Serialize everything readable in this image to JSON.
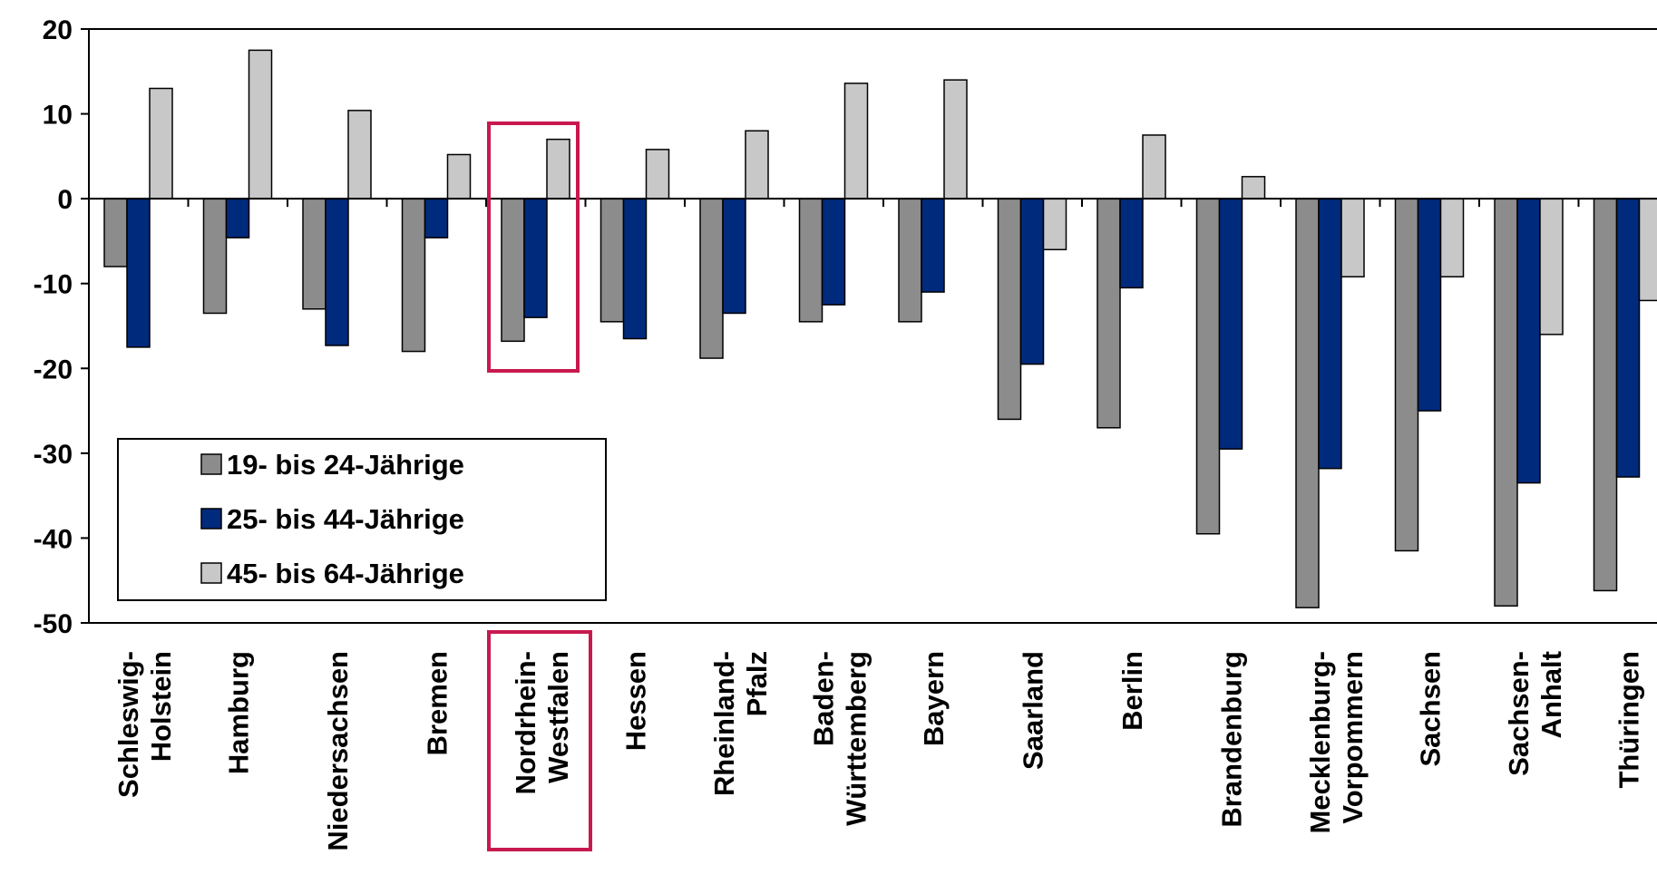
{
  "chart_data": {
    "type": "bar",
    "categories": [
      [
        "Schleswig-",
        "Holstein"
      ],
      [
        "Hamburg"
      ],
      [
        "Niedersachsen"
      ],
      [
        "Bremen"
      ],
      [
        "Nordrhein-",
        "Westfalen"
      ],
      [
        "Hessen"
      ],
      [
        "Rheinland-",
        "Pfalz"
      ],
      [
        "Baden-",
        "Württemberg"
      ],
      [
        "Bayern"
      ],
      [
        "Saarland"
      ],
      [
        "Berlin"
      ],
      [
        "Brandenburg"
      ],
      [
        "Mecklenburg-",
        "Vorpommern"
      ],
      [
        "Sachsen"
      ],
      [
        "Sachsen-",
        "Anhalt"
      ],
      [
        "Thüringen"
      ]
    ],
    "series": [
      {
        "name": "19- bis 24-Jährige",
        "color": "#8c8c8c",
        "values": [
          -8,
          -13.5,
          -13,
          -18,
          -16.8,
          -14.5,
          -18.8,
          -14.5,
          -14.5,
          -26,
          -27,
          -39.5,
          -48.2,
          -41.5,
          -48,
          -46.2
        ]
      },
      {
        "name": "25- bis 44-Jährige",
        "color": "#002a7c",
        "values": [
          -17.5,
          -4.6,
          -17.3,
          -4.6,
          -14,
          -16.5,
          -13.5,
          -12.5,
          -11,
          -19.5,
          -10.5,
          -29.5,
          -31.8,
          -25,
          -33.5,
          -32.8
        ]
      },
      {
        "name": "45- bis 64-Jährige",
        "color": "#c8c8c8",
        "values": [
          13,
          17.5,
          10.4,
          5.2,
          7,
          5.8,
          8,
          13.6,
          14,
          -6,
          7.5,
          2.6,
          -9.2,
          -9.2,
          -16,
          -12
        ]
      }
    ],
    "title": "",
    "xlabel": "",
    "ylabel": "",
    "ylim": [
      -50,
      20
    ],
    "yticks": [
      20,
      10,
      0,
      -10,
      -20,
      -30,
      -40,
      -50
    ],
    "grid": false,
    "legend": "bottom-left",
    "highlight_category_index": 4,
    "highlight_color": "#c8194f"
  }
}
